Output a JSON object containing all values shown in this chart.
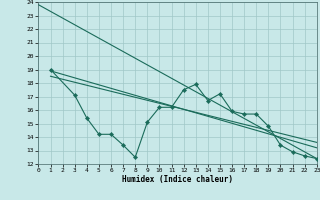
{
  "xlabel": "Humidex (Indice chaleur)",
  "bg_color": "#c8e8e8",
  "grid_color": "#a0c8c8",
  "line_color": "#1a6b5a",
  "xlim": [
    0,
    23
  ],
  "ylim": [
    12,
    24
  ],
  "yticks": [
    12,
    13,
    14,
    15,
    16,
    17,
    18,
    19,
    20,
    21,
    22,
    23,
    24
  ],
  "xticks": [
    0,
    1,
    2,
    3,
    4,
    5,
    6,
    7,
    8,
    9,
    10,
    11,
    12,
    13,
    14,
    15,
    16,
    17,
    18,
    19,
    20,
    21,
    22,
    23
  ],
  "line1_x": [
    0,
    23
  ],
  "line1_y": [
    23.8,
    12.4
  ],
  "line2_x": [
    1,
    23
  ],
  "line2_y": [
    18.9,
    13.2
  ],
  "line3_x": [
    1,
    23
  ],
  "line3_y": [
    18.5,
    13.6
  ],
  "jagged_x": [
    1,
    3,
    4,
    5,
    6,
    7,
    8,
    9,
    10,
    11,
    12,
    13,
    14,
    15,
    16,
    17,
    18,
    19,
    20,
    21,
    22,
    23
  ],
  "jagged_y": [
    19.0,
    17.1,
    15.4,
    14.2,
    14.2,
    13.4,
    12.5,
    15.1,
    16.2,
    16.2,
    17.5,
    17.9,
    16.7,
    17.2,
    15.9,
    15.7,
    15.7,
    14.8,
    13.4,
    12.9,
    12.6,
    12.4
  ]
}
